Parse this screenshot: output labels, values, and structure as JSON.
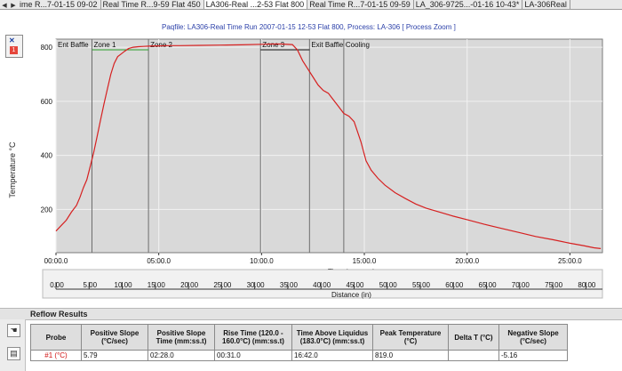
{
  "tabs": [
    {
      "label": "ime R...7-01-15 09-02",
      "active": false
    },
    {
      "label": "Real Time R...9-59 Flat 450",
      "active": false
    },
    {
      "label": "LA306-Real ...2-53 Flat 800",
      "active": true
    },
    {
      "label": "Real Time R...7-01-15 09-59",
      "active": false
    },
    {
      "label": "LA_306-9725...-01-16 10-43*",
      "active": false
    },
    {
      "label": "LA-306Real",
      "active": false
    }
  ],
  "window": {
    "subtitle": "Paqfile: LA306-Real Time Run 2007-01-15 12-53 Flat 800, Process: LA-306 [ Process Zoom ]",
    "close_glyph": "✕",
    "probe_number": "1"
  },
  "chart_data": {
    "type": "line",
    "title": "",
    "xlabel": "Time (mm:ss.t)",
    "ylabel": "Temperature °C",
    "xlim": [
      0,
      1595
    ],
    "ylim": [
      40,
      830
    ],
    "x_ticks": [
      0,
      300,
      600,
      900,
      1200,
      1500
    ],
    "x_tick_labels": [
      "00:00.0",
      "05:00.0",
      "10:00.0",
      "15:00.0",
      "20:00.0",
      "25:00.0"
    ],
    "y_ticks": [
      200,
      400,
      600,
      800
    ],
    "grid": true,
    "series": [
      {
        "color": "#d62020",
        "x": [
          0,
          15,
          30,
          45,
          60,
          70,
          80,
          90,
          100,
          110,
          120,
          130,
          140,
          150,
          160,
          170,
          180,
          190,
          200,
          212,
          225,
          240,
          255,
          270,
          285,
          300,
          330,
          360,
          420,
          480,
          540,
          600,
          630,
          660,
          690,
          705,
          720,
          735,
          750,
          765,
          780,
          795,
          810,
          825,
          840,
          855,
          870,
          890,
          905,
          920,
          940,
          960,
          990,
          1020,
          1050,
          1080,
          1120,
          1160,
          1200,
          1250,
          1300,
          1350,
          1400,
          1450,
          1500,
          1540,
          1570,
          1590
        ],
        "y": [
          120,
          140,
          160,
          190,
          215,
          245,
          280,
          310,
          360,
          410,
          470,
          530,
          590,
          645,
          700,
          740,
          765,
          775,
          785,
          795,
          800,
          802,
          803,
          804,
          805,
          805,
          806,
          806,
          807,
          808,
          809,
          811,
          812,
          812,
          810,
          790,
          750,
          720,
          690,
          660,
          640,
          630,
          605,
          580,
          555,
          545,
          525,
          450,
          380,
          345,
          315,
          290,
          262,
          240,
          220,
          205,
          190,
          175,
          162,
          145,
          130,
          115,
          100,
          88,
          75,
          66,
          58,
          55
        ]
      }
    ],
    "zones": [
      {
        "label": "Ent Baffle",
        "start": 0,
        "end": 105
      },
      {
        "label": "Zone 1",
        "start": 105,
        "end": 270
      },
      {
        "label": "Zone 2",
        "start": 270,
        "end": 597
      },
      {
        "label": "Zone 3",
        "start": 597,
        "end": 740
      },
      {
        "label": "Exit Baffle",
        "start": 740,
        "end": 840
      },
      {
        "label": "Cooling",
        "start": 840,
        "end": 1595
      }
    ],
    "distance_axis": {
      "label": "Distance (in)",
      "min": 0,
      "max": 82.5,
      "ticks": [
        0,
        5,
        10,
        15,
        20,
        25,
        30,
        35,
        40,
        45,
        50,
        55,
        60,
        65,
        70,
        75,
        80
      ],
      "tick_labels": [
        "0.00",
        "5.00",
        "10.00",
        "15.00",
        "20.00",
        "25.00",
        "30.00",
        "35.00",
        "40.00",
        "45.00",
        "50.00",
        "55.00",
        "60.00",
        "65.00",
        "70.00",
        "75.00",
        "80.00"
      ]
    }
  },
  "results": {
    "title": "Reflow Results",
    "icons": [
      "hand-icon",
      "document-icon"
    ],
    "headers": [
      "Probe",
      "Positive Slope (°C/sec)",
      "Positive Slope Time (mm:ss.t)",
      "Rise Time (120.0 - 160.0°C) (mm:ss.t)",
      "Time Above Liquidus (183.0°C) (mm:ss.t)",
      "Peak Temperature (°C)",
      "Delta T (°C)",
      "Negative Slope (°C/sec)"
    ],
    "row": [
      "#1 (°C)",
      "5.79",
      "02:28.0",
      "00:31.0",
      "16:42.0",
      "819.0",
      "",
      "-5.16"
    ]
  }
}
